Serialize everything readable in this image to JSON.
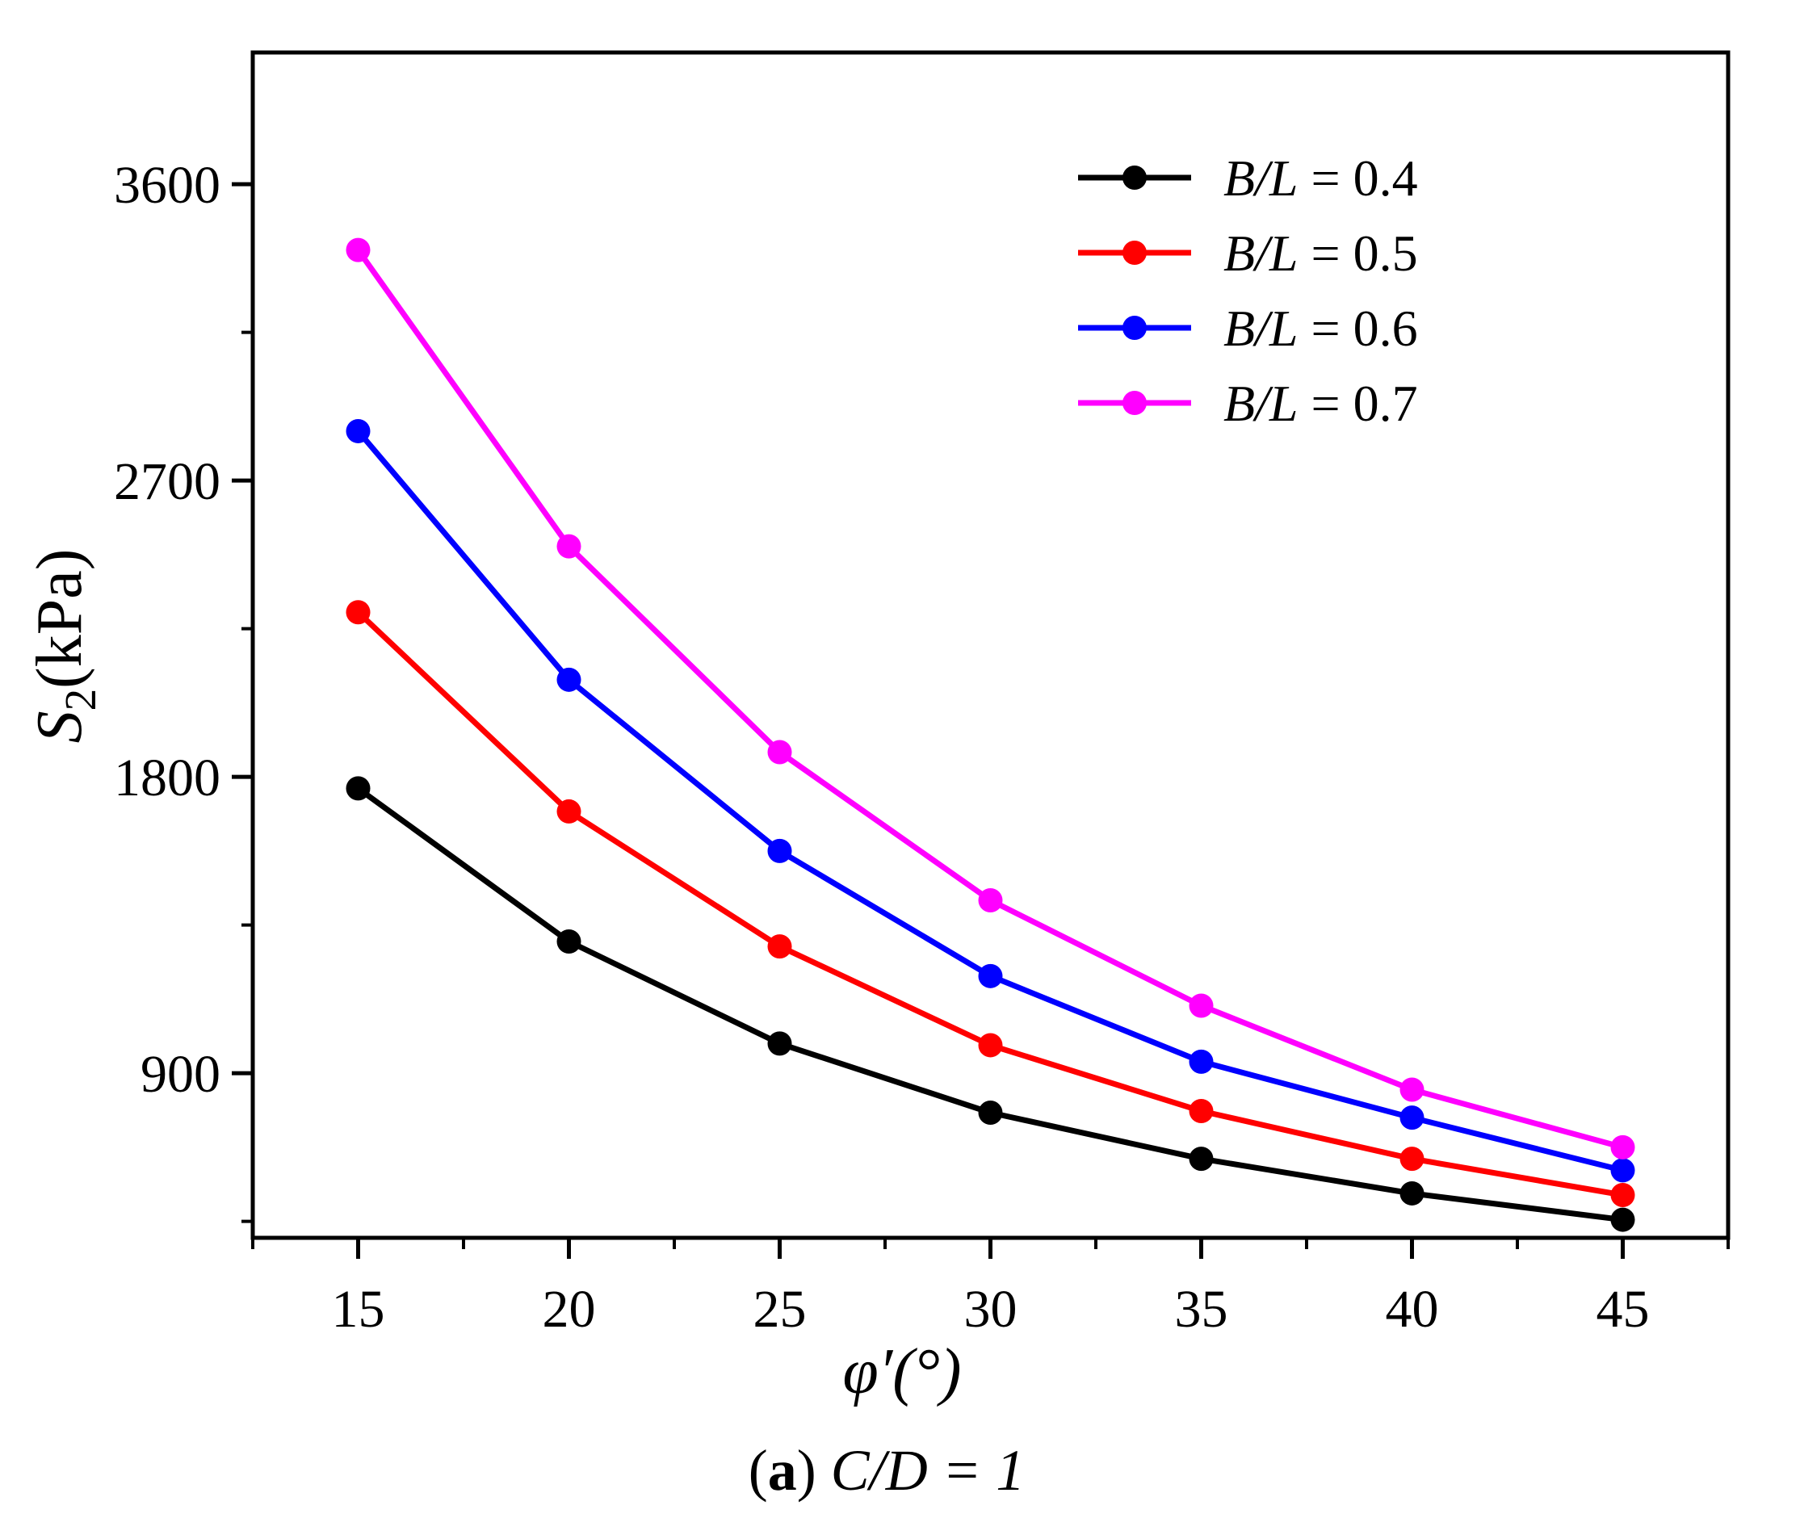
{
  "chart_data": {
    "type": "line",
    "title": "",
    "xlabel": "φ′(°)",
    "ylabel": "S2(kPa)",
    "ylabel_main": "S",
    "ylabel_sub": "2",
    "ylabel_unit": "(kPa)",
    "x": [
      15,
      20,
      25,
      30,
      35,
      40,
      45
    ],
    "xlim": [
      12.5,
      47.5
    ],
    "ylim": [
      400,
      4000
    ],
    "x_ticks": [
      15,
      20,
      25,
      30,
      35,
      40,
      45
    ],
    "x_tick_labels": [
      "15",
      "20",
      "25",
      "30",
      "35",
      "40",
      "45"
    ],
    "y_ticks": [
      900,
      1800,
      2700,
      3600
    ],
    "y_tick_labels": [
      "900",
      "1800",
      "2700",
      "3600"
    ],
    "y_minor_ticks": [
      450,
      1350,
      2250,
      3150
    ],
    "grid": false,
    "legend_position": "top-right",
    "series": [
      {
        "name": "B/L = 0.4",
        "var": "B/L",
        "value": "= 0.4",
        "color": "#000000",
        "values": [
          1765,
          1300,
          990,
          780,
          640,
          535,
          455
        ]
      },
      {
        "name": "B/L = 0.5",
        "var": "B/L",
        "value": "= 0.5",
        "color": "#ff0000",
        "values": [
          2300,
          1695,
          1285,
          985,
          785,
          640,
          530
        ]
      },
      {
        "name": "B/L = 0.6",
        "var": "B/L",
        "value": "= 0.6",
        "color": "#0000ff",
        "values": [
          2850,
          2095,
          1575,
          1195,
          935,
          765,
          605
        ]
      },
      {
        "name": "B/L = 0.7",
        "var": "B/L",
        "value": "= 0.7",
        "color": "#ff00ff",
        "values": [
          3400,
          2500,
          1875,
          1425,
          1105,
          850,
          675
        ]
      }
    ]
  },
  "caption": {
    "label": "(a)",
    "label_letter": "a",
    "text": "C/D = 1"
  }
}
